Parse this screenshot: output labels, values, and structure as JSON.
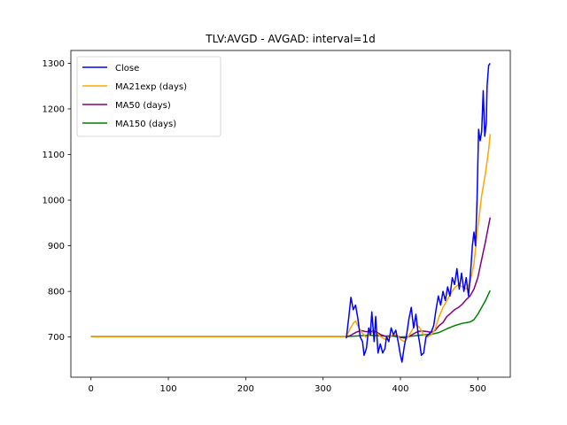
{
  "chart_data": {
    "type": "line",
    "title": "TLV:AVGD - AVGAD: interval=1d",
    "xlabel": "",
    "ylabel": "",
    "xlim": [
      -26,
      542
    ],
    "ylim": [
      612,
      1328
    ],
    "x_ticks": [
      0,
      100,
      200,
      300,
      400,
      500
    ],
    "y_ticks": [
      700,
      800,
      900,
      1000,
      1100,
      1200,
      1300
    ],
    "grid": false,
    "legend_position": "top-left",
    "series": [
      {
        "name": "Close",
        "color": "#0000ff",
        "points": [
          [
            330,
            697
          ],
          [
            333,
            740
          ],
          [
            336,
            787
          ],
          [
            339,
            760
          ],
          [
            342,
            770
          ],
          [
            345,
            740
          ],
          [
            348,
            700
          ],
          [
            351,
            690
          ],
          [
            353,
            660
          ],
          [
            356,
            675
          ],
          [
            359,
            720
          ],
          [
            361,
            705
          ],
          [
            363,
            755
          ],
          [
            366,
            690
          ],
          [
            368,
            745
          ],
          [
            371,
            665
          ],
          [
            374,
            685
          ],
          [
            377,
            665
          ],
          [
            380,
            675
          ],
          [
            382,
            700
          ],
          [
            385,
            690
          ],
          [
            388,
            720
          ],
          [
            391,
            705
          ],
          [
            394,
            715
          ],
          [
            397,
            690
          ],
          [
            400,
            660
          ],
          [
            402,
            645
          ],
          [
            405,
            680
          ],
          [
            408,
            705
          ],
          [
            411,
            740
          ],
          [
            414,
            765
          ],
          [
            417,
            720
          ],
          [
            420,
            750
          ],
          [
            423,
            705
          ],
          [
            425,
            685
          ],
          [
            427,
            660
          ],
          [
            430,
            665
          ],
          [
            433,
            700
          ],
          [
            436,
            705
          ],
          [
            440,
            712
          ],
          [
            443,
            725
          ],
          [
            446,
            760
          ],
          [
            449,
            790
          ],
          [
            452,
            770
          ],
          [
            455,
            800
          ],
          [
            458,
            780
          ],
          [
            461,
            810
          ],
          [
            464,
            790
          ],
          [
            467,
            830
          ],
          [
            470,
            815
          ],
          [
            473,
            850
          ],
          [
            476,
            805
          ],
          [
            479,
            840
          ],
          [
            482,
            800
          ],
          [
            485,
            830
          ],
          [
            488,
            790
          ],
          [
            491,
            850
          ],
          [
            493,
            900
          ],
          [
            495,
            930
          ],
          [
            497,
            900
          ],
          [
            499,
            1000
          ],
          [
            501,
            1155
          ],
          [
            503,
            1130
          ],
          [
            505,
            1150
          ],
          [
            507,
            1240
          ],
          [
            509,
            1140
          ],
          [
            511,
            1170
          ],
          [
            512,
            1250
          ],
          [
            514,
            1295
          ],
          [
            516,
            1300
          ]
        ]
      },
      {
        "name": "MA21exp (days)",
        "color": "#ffa500",
        "points": [
          [
            0,
            701
          ],
          [
            330,
            701
          ],
          [
            335,
            718
          ],
          [
            339,
            730
          ],
          [
            342,
            735
          ],
          [
            345,
            725
          ],
          [
            350,
            710
          ],
          [
            355,
            700
          ],
          [
            360,
            705
          ],
          [
            365,
            712
          ],
          [
            370,
            708
          ],
          [
            375,
            700
          ],
          [
            380,
            695
          ],
          [
            385,
            700
          ],
          [
            390,
            705
          ],
          [
            395,
            705
          ],
          [
            400,
            695
          ],
          [
            405,
            690
          ],
          [
            410,
            700
          ],
          [
            415,
            715
          ],
          [
            420,
            728
          ],
          [
            425,
            720
          ],
          [
            430,
            705
          ],
          [
            435,
            700
          ],
          [
            440,
            705
          ],
          [
            445,
            718
          ],
          [
            450,
            745
          ],
          [
            455,
            765
          ],
          [
            460,
            780
          ],
          [
            465,
            795
          ],
          [
            470,
            808
          ],
          [
            475,
            815
          ],
          [
            480,
            810
          ],
          [
            485,
            805
          ],
          [
            490,
            820
          ],
          [
            495,
            860
          ],
          [
            500,
            940
          ],
          [
            505,
            1010
          ],
          [
            510,
            1060
          ],
          [
            514,
            1110
          ],
          [
            516,
            1145
          ]
        ]
      },
      {
        "name": "MA50 (days)",
        "color": "#800080",
        "points": [
          [
            0,
            701
          ],
          [
            330,
            701
          ],
          [
            335,
            703
          ],
          [
            340,
            708
          ],
          [
            345,
            712
          ],
          [
            350,
            714
          ],
          [
            355,
            712
          ],
          [
            360,
            712
          ],
          [
            365,
            713
          ],
          [
            370,
            710
          ],
          [
            375,
            705
          ],
          [
            380,
            702
          ],
          [
            385,
            702
          ],
          [
            390,
            703
          ],
          [
            395,
            703
          ],
          [
            400,
            699
          ],
          [
            405,
            698
          ],
          [
            410,
            700
          ],
          [
            415,
            705
          ],
          [
            420,
            710
          ],
          [
            425,
            713
          ],
          [
            430,
            713
          ],
          [
            435,
            712
          ],
          [
            440,
            710
          ],
          [
            445,
            715
          ],
          [
            450,
            725
          ],
          [
            455,
            732
          ],
          [
            460,
            745
          ],
          [
            465,
            752
          ],
          [
            470,
            760
          ],
          [
            475,
            765
          ],
          [
            480,
            772
          ],
          [
            485,
            782
          ],
          [
            490,
            790
          ],
          [
            495,
            805
          ],
          [
            500,
            830
          ],
          [
            505,
            870
          ],
          [
            510,
            910
          ],
          [
            514,
            945
          ],
          [
            516,
            962
          ]
        ]
      },
      {
        "name": "MA150 (days)",
        "color": "#008000",
        "points": [
          [
            0,
            701
          ],
          [
            330,
            701
          ],
          [
            340,
            702
          ],
          [
            350,
            703
          ],
          [
            360,
            704
          ],
          [
            370,
            703
          ],
          [
            380,
            702
          ],
          [
            390,
            702
          ],
          [
            400,
            700
          ],
          [
            410,
            701
          ],
          [
            420,
            703
          ],
          [
            430,
            705
          ],
          [
            440,
            706
          ],
          [
            450,
            710
          ],
          [
            460,
            718
          ],
          [
            470,
            725
          ],
          [
            480,
            730
          ],
          [
            490,
            733
          ],
          [
            495,
            738
          ],
          [
            500,
            750
          ],
          [
            505,
            765
          ],
          [
            510,
            780
          ],
          [
            514,
            795
          ],
          [
            516,
            802
          ]
        ]
      }
    ]
  }
}
